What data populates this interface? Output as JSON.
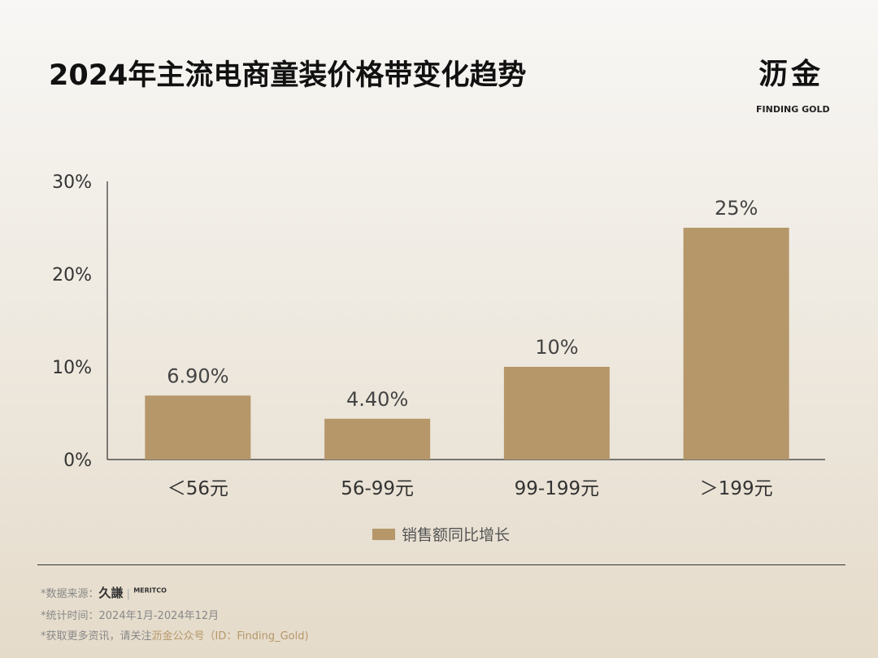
{
  "title": "2024年主流电商童装价格带变化趋势",
  "logo": {
    "cn": "沥金",
    "en": "FINDING GOLD"
  },
  "colors": {
    "bar": "#b5976a",
    "axis": "#333333"
  },
  "chart_data": {
    "type": "bar",
    "categories": [
      "＜56元",
      "56-99元",
      "99-199元",
      "＞199元"
    ],
    "series": [
      {
        "name": "销售额同比增长",
        "values": [
          6.9,
          4.4,
          10,
          25
        ]
      }
    ],
    "data_labels": [
      "6.90%",
      "4.40%",
      "10%",
      "25%"
    ],
    "yticks": [
      "0%",
      "10%",
      "20%",
      "30%"
    ],
    "ylim": [
      0,
      30
    ],
    "legend": "bottom",
    "grid": false
  },
  "footer": {
    "source_label": "*数据来源：",
    "source_logo_cn": "久謙",
    "source_logo_en": "MERITCO",
    "period": "*统计时间：2024年1月-2024年12月",
    "more_prefix": "*获取更多资讯，请关注",
    "more_highlight": "沥金公众号（ID：Finding_Gold)"
  }
}
